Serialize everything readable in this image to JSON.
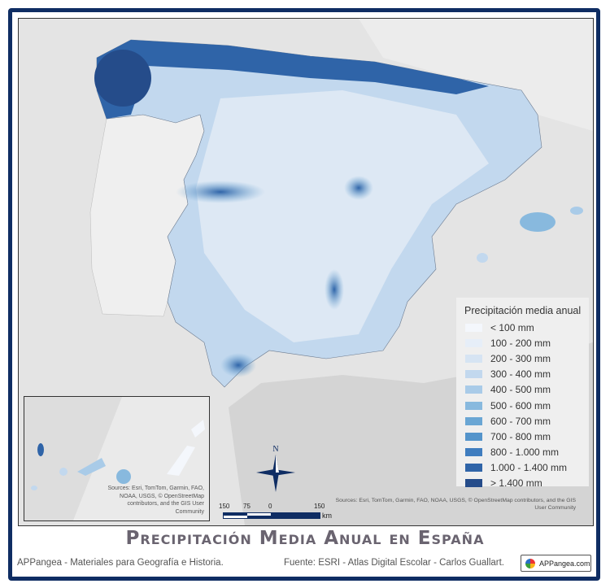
{
  "legend": {
    "title": "Precipitación media anual",
    "items": [
      {
        "label": "< 100 mm",
        "color": "#f4f7fc"
      },
      {
        "label": "100 - 200 mm",
        "color": "#e6eef8"
      },
      {
        "label": "200 - 300 mm",
        "color": "#d6e4f3"
      },
      {
        "label": "300 - 400 mm",
        "color": "#c2d8ee"
      },
      {
        "label": "400 - 500 mm",
        "color": "#a9cbe8"
      },
      {
        "label": "500 -  600 mm",
        "color": "#88b9de"
      },
      {
        "label": "600 - 700 mm",
        "color": "#6aa6d4"
      },
      {
        "label": "700 - 800 mm",
        "color": "#5494cb"
      },
      {
        "label": "800 - 1.000 mm",
        "color": "#3f7dbf"
      },
      {
        "label": "1.000 - 1.400 mm",
        "color": "#2f64a8"
      },
      {
        "label": "> 1.400 mm",
        "color": "#254c8a"
      }
    ]
  },
  "inset": {
    "sources": "Sources: Esri, TomTom, Garmin, FAO, NOAA, USGS, © OpenStreetMap contributors, and the GIS User Community"
  },
  "map_sources": "Sources: Esri, TomTom, Garmin, FAO, NOAA, USGS, © OpenStreetMap contributors, and the GIS User Community",
  "scale": {
    "labels": [
      "150",
      "75",
      "0",
      "150"
    ],
    "unit": "km"
  },
  "north_label": "N",
  "title": "Precipitación Media Anual en España",
  "footer": {
    "left": "APPangea - Materiales para Geografía e Historia.",
    "right": "Fuente: ESRI - Atlas Digital Escolar - Carlos Guallart.",
    "badge": "APPangea.com"
  },
  "colors": {
    "frame": "#0f2d63",
    "land": "#f0f0f0",
    "sea": "#e4e4e4"
  }
}
